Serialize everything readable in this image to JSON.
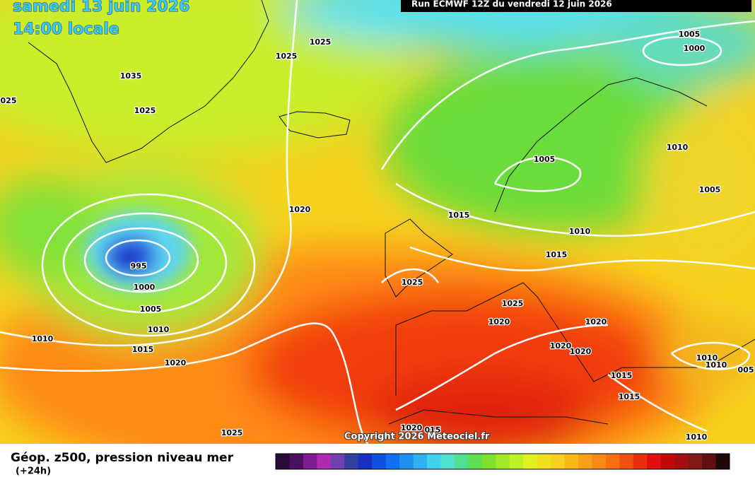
{
  "header": {
    "date": "samedi 13 juin 2026",
    "time": "14:00 locale",
    "run": "Run ECMWF 12Z du vendredi 12 juin 2026"
  },
  "isobar_labels": [
    "1035",
    "1025",
    "025",
    "1025",
    "1025",
    "1020",
    "995",
    "1000",
    "1005",
    "1010",
    "1010",
    "1015",
    "1020",
    "1025",
    "1025",
    "1015",
    "1015",
    "1010",
    "1005",
    "1005",
    "1000",
    "1010",
    "1005",
    "1025",
    "1020",
    "1020",
    "1020",
    "1020",
    "1010",
    "1010",
    "005",
    "1015",
    "1015",
    "1010",
    "1020",
    "015"
  ],
  "footer": {
    "title": "Géop. z500, pression niveau mer",
    "subtitle": "(+24h)",
    "copyright": "Copyright 2026 Meteociel.fr"
  }
}
